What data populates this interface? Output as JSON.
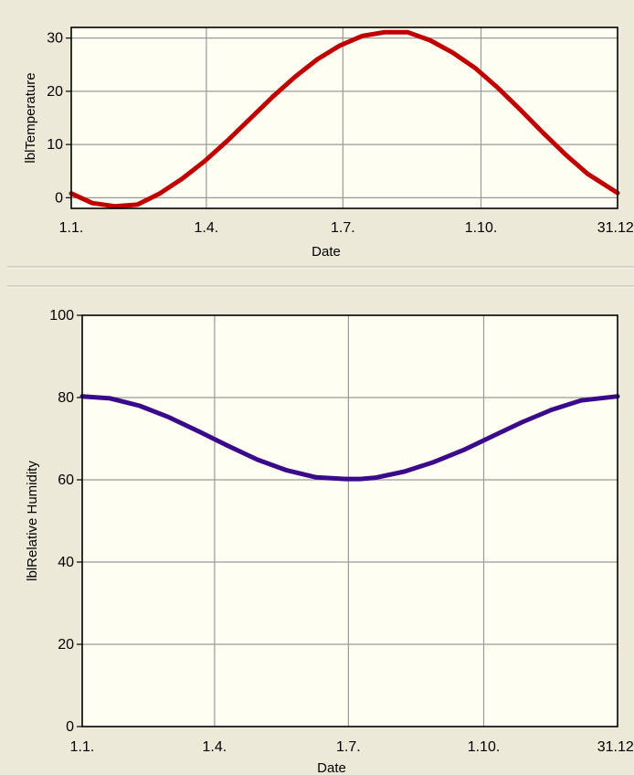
{
  "colors": {
    "background": "#ece9d8",
    "plot_background": "#fffef2",
    "grid": "#9a9a9a",
    "divider_dark": "#b9b6a6",
    "divider_light": "#ffffff"
  },
  "chart_data": [
    {
      "type": "line",
      "xlabel": "Date",
      "ylabel": "lblTemperature",
      "x_ticks": [
        "1.1.",
        "1.4.",
        "1.7.",
        "1.10.",
        "31.12."
      ],
      "y_ticks": [
        "0",
        "10",
        "20",
        "30"
      ],
      "ylim": [
        -2,
        32
      ],
      "grid": true,
      "series": [
        {
          "color": "#c00000",
          "x_day_of_year": [
            1,
            15,
            30,
            45,
            60,
            75,
            90,
            105,
            120,
            135,
            150,
            165,
            180,
            195,
            210,
            225,
            240,
            255,
            270,
            285,
            300,
            315,
            330,
            345,
            365
          ],
          "values": [
            0.8,
            -1.0,
            -1.6,
            -1.3,
            0.8,
            3.6,
            6.9,
            10.7,
            14.8,
            18.9,
            22.7,
            26.0,
            28.6,
            30.4,
            31.1,
            31.1,
            29.6,
            27.3,
            24.4,
            20.7,
            16.6,
            12.3,
            8.2,
            4.5,
            0.9
          ]
        }
      ]
    },
    {
      "type": "line",
      "xlabel": "Date",
      "ylabel": "lblRelative Humidity",
      "x_ticks": [
        "1.1.",
        "1.4.",
        "1.7.",
        "1.10.",
        "31.12."
      ],
      "y_ticks": [
        "0",
        "20",
        "40",
        "60",
        "80",
        "100"
      ],
      "ylim": [
        0,
        100
      ],
      "grid": true,
      "series": [
        {
          "color": "#3a0a8a",
          "x_day_of_year": [
            1,
            20,
            40,
            60,
            80,
            100,
            120,
            140,
            160,
            180,
            190,
            200,
            220,
            240,
            260,
            280,
            300,
            320,
            340,
            365
          ],
          "values": [
            80.3,
            79.8,
            78.0,
            75.2,
            71.8,
            68.3,
            64.9,
            62.3,
            60.6,
            60.2,
            60.2,
            60.5,
            62.0,
            64.3,
            67.2,
            70.6,
            74.0,
            77.0,
            79.3,
            80.3
          ]
        }
      ]
    }
  ]
}
